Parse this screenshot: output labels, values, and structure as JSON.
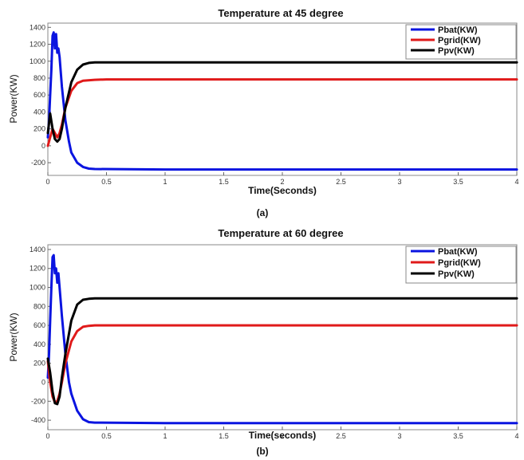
{
  "chart_data": [
    {
      "type": "line",
      "panel_label": "(a)",
      "title": "Temperature at 45 degree",
      "xlabel": "Time(Seconds)",
      "ylabel": "Power(KW)",
      "xlim": [
        0,
        4
      ],
      "ylim": [
        -350,
        1450
      ],
      "xticks": [
        0,
        0.5,
        1,
        1.5,
        2,
        2.5,
        3,
        3.5,
        4
      ],
      "xtick_labels": [
        "0",
        "0.5",
        "1",
        "1.5",
        "2",
        "2.5",
        "3",
        "3.5",
        "4"
      ],
      "yticks": [
        -200,
        0,
        200,
        400,
        600,
        800,
        1000,
        1200,
        1400
      ],
      "ytick_labels": [
        "-200",
        "0",
        "200",
        "400",
        "600",
        "800",
        "1000",
        "1200",
        "1400"
      ],
      "legend_position": "top-right",
      "grid": false,
      "series": [
        {
          "name": "Pbat(KW)",
          "color": "#0a14e0",
          "x": [
            0,
            0.01,
            0.02,
            0.03,
            0.04,
            0.05,
            0.06,
            0.07,
            0.08,
            0.09,
            0.1,
            0.12,
            0.15,
            0.18,
            0.2,
            0.25,
            0.3,
            0.35,
            0.4,
            1,
            2,
            3,
            4
          ],
          "y": [
            100,
            300,
            600,
            900,
            1300,
            1340,
            1150,
            1320,
            1100,
            1150,
            1050,
            700,
            300,
            50,
            -80,
            -200,
            -250,
            -270,
            -275,
            -280,
            -280,
            -280,
            -280
          ]
        },
        {
          "name": "Pgrid(KW)",
          "color": "#e01a1a",
          "x": [
            0,
            0.02,
            0.04,
            0.06,
            0.08,
            0.1,
            0.12,
            0.15,
            0.2,
            0.25,
            0.3,
            0.4,
            0.5,
            1,
            2,
            3,
            4
          ],
          "y": [
            0,
            100,
            200,
            150,
            100,
            150,
            250,
            450,
            650,
            740,
            770,
            780,
            785,
            785,
            785,
            785,
            785
          ]
        },
        {
          "name": "Ppv(KW)",
          "color": "#000000",
          "x": [
            0,
            0.02,
            0.04,
            0.06,
            0.08,
            0.1,
            0.12,
            0.15,
            0.2,
            0.25,
            0.3,
            0.35,
            0.4,
            0.5,
            1,
            2,
            3,
            4
          ],
          "y": [
            150,
            380,
            200,
            80,
            50,
            80,
            200,
            450,
            750,
            900,
            960,
            980,
            985,
            985,
            985,
            985,
            985,
            985
          ]
        }
      ]
    },
    {
      "type": "line",
      "panel_label": "(b)",
      "title": "Temperature at 60 degree",
      "xlabel": "Time(seconds)",
      "ylabel": "Power(KW)",
      "xlim": [
        0,
        4
      ],
      "ylim": [
        -500,
        1450
      ],
      "xticks": [
        0,
        0.5,
        1,
        1.5,
        2,
        2.5,
        3,
        3.5,
        4
      ],
      "xtick_labels": [
        "0",
        "0.5",
        "1",
        "1.5",
        "2",
        "2.5",
        "3",
        "3.5",
        "4"
      ],
      "yticks": [
        -400,
        -200,
        0,
        200,
        400,
        600,
        800,
        1000,
        1200,
        1400
      ],
      "ytick_labels": [
        "-400",
        "-200",
        "0",
        "200",
        "400",
        "600",
        "800",
        "1000",
        "1200",
        "1400"
      ],
      "legend_position": "top-right",
      "grid": false,
      "series": [
        {
          "name": "Pbat(KW)",
          "color": "#0a14e0",
          "x": [
            0,
            0.01,
            0.02,
            0.03,
            0.04,
            0.05,
            0.06,
            0.07,
            0.08,
            0.09,
            0.1,
            0.12,
            0.15,
            0.18,
            0.2,
            0.25,
            0.3,
            0.35,
            0.4,
            1,
            2,
            3,
            4
          ],
          "y": [
            50,
            300,
            650,
            1000,
            1320,
            1340,
            1150,
            1200,
            1050,
            1150,
            1000,
            700,
            300,
            0,
            -120,
            -300,
            -390,
            -420,
            -425,
            -430,
            -430,
            -430,
            -430
          ]
        },
        {
          "name": "Pgrid(KW)",
          "color": "#e01a1a",
          "x": [
            0,
            0.02,
            0.04,
            0.06,
            0.08,
            0.1,
            0.12,
            0.15,
            0.2,
            0.25,
            0.3,
            0.35,
            0.4,
            0.5,
            1,
            2,
            3,
            4
          ],
          "y": [
            220,
            0,
            -150,
            -210,
            -200,
            -120,
            0,
            200,
            430,
            540,
            585,
            595,
            600,
            600,
            600,
            600,
            600,
            600
          ]
        },
        {
          "name": "Ppv(KW)",
          "color": "#000000",
          "x": [
            0,
            0.02,
            0.04,
            0.06,
            0.08,
            0.1,
            0.12,
            0.15,
            0.2,
            0.25,
            0.3,
            0.35,
            0.4,
            0.5,
            1,
            2,
            3,
            4
          ],
          "y": [
            250,
            100,
            -100,
            -220,
            -230,
            -150,
            50,
            300,
            650,
            820,
            870,
            880,
            885,
            885,
            885,
            885,
            885,
            885
          ]
        }
      ]
    }
  ]
}
